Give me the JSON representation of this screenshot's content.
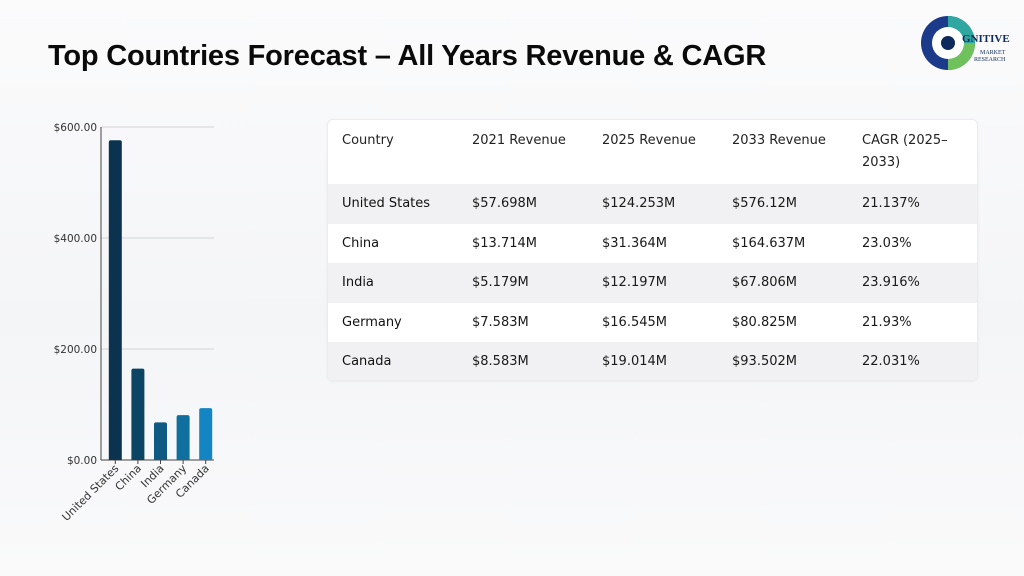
{
  "title": "Top Countries Forecast – All Years Revenue & CAGR",
  "logo": {
    "text_main": "GNITIVE",
    "text_sub1": "MARKET",
    "text_sub2": "RESEARCH",
    "colors": [
      "#1b3a8a",
      "#2fa7a0",
      "#6fc15b",
      "#0d2a5c"
    ]
  },
  "chart_data": {
    "type": "bar",
    "categories": [
      "United States",
      "China",
      "India",
      "Germany",
      "Canada"
    ],
    "values": [
      576.12,
      164.637,
      67.806,
      80.825,
      93.502
    ],
    "ylim": [
      0,
      600
    ],
    "yticks": [
      0,
      200,
      400,
      600
    ],
    "ytick_labels": [
      "$0.00",
      "$200.00",
      "$400.00",
      "$600.00"
    ],
    "colors": [
      "#0b3350",
      "#0c4464",
      "#0e5a82",
      "#0f6f9f",
      "#1385c2"
    ],
    "grid": true,
    "title": "",
    "xlabel": "",
    "ylabel": ""
  },
  "table": {
    "headers": [
      "Country",
      "2021 Revenue",
      "2025 Revenue",
      "2033 Revenue",
      "CAGR (2025–2033)"
    ],
    "rows": [
      [
        "United States",
        "$57.698M",
        "$124.253M",
        "$576.12M",
        "21.137%"
      ],
      [
        "China",
        "$13.714M",
        "$31.364M",
        "$164.637M",
        "23.03%"
      ],
      [
        "India",
        "$5.179M",
        "$12.197M",
        "$67.806M",
        "23.916%"
      ],
      [
        "Germany",
        "$7.583M",
        "$16.545M",
        "$80.825M",
        "21.93%"
      ],
      [
        "Canada",
        "$8.583M",
        "$19.014M",
        "$93.502M",
        "22.031%"
      ]
    ]
  }
}
